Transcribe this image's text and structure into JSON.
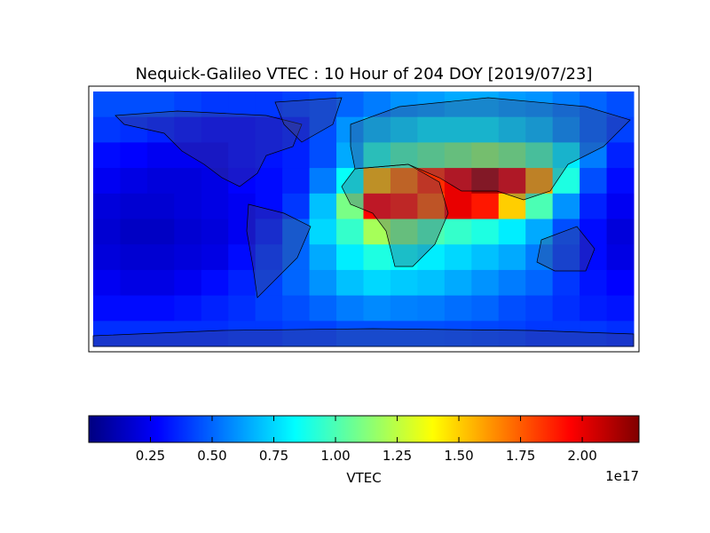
{
  "chart_data": {
    "type": "heatmap",
    "title": "Nequick-Galileo VTEC : 10 Hour of 204 DOY [2019/07/23]",
    "colormap": "jet",
    "clim": [
      0,
      2.23
    ],
    "colorbar_ticks": [
      0.25,
      {
        "value": 0.5,
        "label": "0.50"
      },
      0.75,
      {
        "value": 1,
        "label": "1.00"
      },
      1.25,
      {
        "value": 1.5,
        "label": "1.50"
      },
      1.75,
      {
        "value": 2,
        "label": "2.00"
      }
    ],
    "colorbar_label": "VTEC",
    "colorbar_offset": "1e17",
    "values": [
      [
        0.45,
        0.45,
        0.45,
        0.42,
        0.4,
        0.4,
        0.4,
        0.42,
        0.45,
        0.5,
        0.55,
        0.6,
        0.62,
        0.65,
        0.65,
        0.62,
        0.6,
        0.55,
        0.5,
        0.45
      ],
      [
        0.4,
        0.38,
        0.35,
        0.32,
        0.3,
        0.3,
        0.32,
        0.35,
        0.45,
        0.6,
        0.7,
        0.75,
        0.8,
        0.8,
        0.8,
        0.75,
        0.7,
        0.6,
        0.5,
        0.42
      ],
      [
        0.3,
        0.28,
        0.25,
        0.25,
        0.25,
        0.3,
        0.32,
        0.35,
        0.45,
        0.65,
        0.9,
        1.0,
        1.05,
        1.1,
        1.15,
        1.1,
        1.0,
        0.8,
        0.55,
        0.35
      ],
      [
        0.25,
        0.22,
        0.2,
        0.2,
        0.22,
        0.28,
        0.3,
        0.35,
        0.55,
        0.85,
        1.55,
        1.7,
        1.85,
        2.0,
        2.15,
        2.0,
        1.6,
        0.9,
        0.45,
        0.3
      ],
      [
        0.2,
        0.18,
        0.18,
        0.2,
        0.22,
        0.25,
        0.3,
        0.4,
        0.7,
        1.1,
        1.95,
        1.9,
        1.75,
        2.0,
        1.9,
        1.5,
        1.0,
        0.6,
        0.35,
        0.25
      ],
      [
        0.18,
        0.15,
        0.15,
        0.18,
        0.2,
        0.25,
        0.35,
        0.5,
        0.75,
        0.95,
        1.2,
        1.1,
        1.0,
        0.95,
        0.9,
        0.8,
        0.65,
        0.45,
        0.3,
        0.2
      ],
      [
        0.2,
        0.18,
        0.18,
        0.2,
        0.22,
        0.3,
        0.4,
        0.5,
        0.65,
        0.8,
        0.9,
        0.85,
        0.8,
        0.75,
        0.7,
        0.65,
        0.55,
        0.42,
        0.3,
        0.22
      ],
      [
        0.25,
        0.22,
        0.22,
        0.25,
        0.3,
        0.35,
        0.42,
        0.5,
        0.6,
        0.7,
        0.75,
        0.72,
        0.7,
        0.65,
        0.6,
        0.55,
        0.5,
        0.4,
        0.32,
        0.28
      ],
      [
        0.3,
        0.3,
        0.3,
        0.32,
        0.35,
        0.38,
        0.42,
        0.45,
        0.5,
        0.55,
        0.58,
        0.56,
        0.55,
        0.52,
        0.5,
        0.45,
        0.42,
        0.38,
        0.34,
        0.32
      ],
      [
        0.38,
        0.38,
        0.38,
        0.38,
        0.38,
        0.4,
        0.4,
        0.42,
        0.42,
        0.45,
        0.45,
        0.45,
        0.45,
        0.44,
        0.43,
        0.42,
        0.4,
        0.4,
        0.4,
        0.38
      ]
    ]
  }
}
